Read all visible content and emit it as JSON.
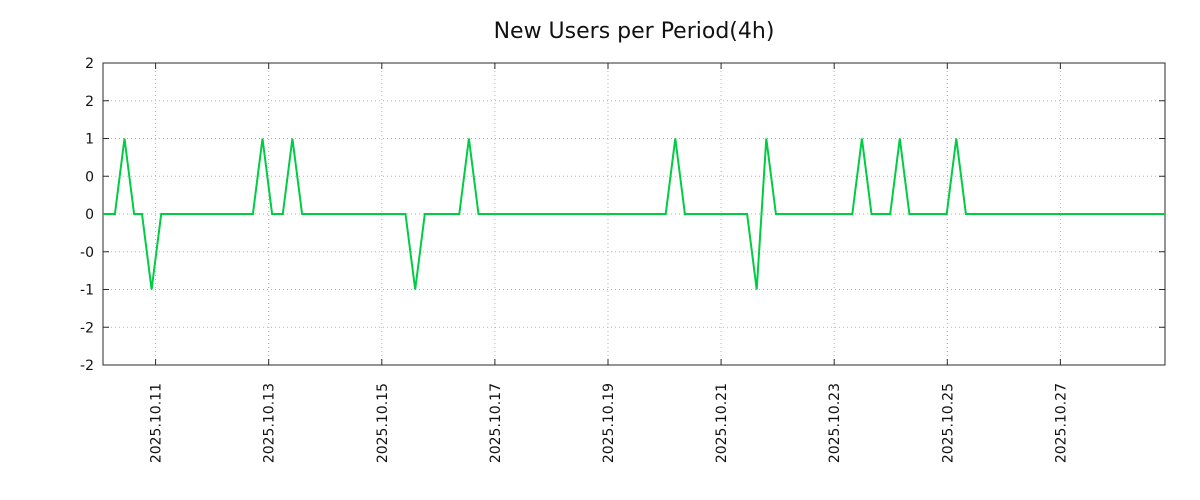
{
  "chart_data": {
    "type": "line",
    "title": "New Users per Period(4h)",
    "period_hours": 4,
    "line_color": "#00cc44",
    "grid_color": "#b3b3b3",
    "axis_color": "#2a2a2a",
    "text_color": "#111111",
    "background": "#ffffff",
    "grid": true,
    "legend": "none",
    "ylim": [
      -2,
      2
    ],
    "xlim_days": [
      -0.93,
      17.85
    ],
    "x_unit": "days_since_2025.10.11",
    "y_ticks": [
      {
        "value": 2.0,
        "label": "2"
      },
      {
        "value": 1.5,
        "label": "2"
      },
      {
        "value": 1.0,
        "label": "1"
      },
      {
        "value": 0.5,
        "label": "0"
      },
      {
        "value": 0.0,
        "label": "0"
      },
      {
        "value": -0.5,
        "label": "-0"
      },
      {
        "value": -1.0,
        "label": "-1"
      },
      {
        "value": -1.5,
        "label": "-2"
      },
      {
        "value": -2.0,
        "label": "-2"
      }
    ],
    "x_ticks": [
      {
        "day": 0,
        "label": "2025.10.11"
      },
      {
        "day": 2,
        "label": "2025.10.13"
      },
      {
        "day": 4,
        "label": "2025.10.15"
      },
      {
        "day": 6,
        "label": "2025.10.17"
      },
      {
        "day": 8,
        "label": "2025.10.19"
      },
      {
        "day": 10,
        "label": "2025.10.21"
      },
      {
        "day": 12,
        "label": "2025.10.23"
      },
      {
        "day": 14,
        "label": "2025.10.25"
      },
      {
        "day": 16,
        "label": "2025.10.27"
      }
    ],
    "baseline_value": 0,
    "spike_events": [
      {
        "day": -0.55,
        "value": 1
      },
      {
        "day": -0.07,
        "value": -1
      },
      {
        "day": 1.89,
        "value": 1
      },
      {
        "day": 2.42,
        "value": 1
      },
      {
        "day": 4.59,
        "value": -1
      },
      {
        "day": 5.54,
        "value": 1
      },
      {
        "day": 9.19,
        "value": 1
      },
      {
        "day": 10.63,
        "value": -1
      },
      {
        "day": 10.8,
        "value": 1
      },
      {
        "day": 12.49,
        "value": 1
      },
      {
        "day": 13.16,
        "value": 1
      },
      {
        "day": 14.16,
        "value": 1
      }
    ],
    "points_day_value": [
      [
        -0.93,
        0
      ],
      [
        -0.72,
        0
      ],
      [
        -0.55,
        1
      ],
      [
        -0.38,
        0
      ],
      [
        -0.24,
        0
      ],
      [
        -0.07,
        -1
      ],
      [
        0.1,
        0
      ],
      [
        1.72,
        0
      ],
      [
        1.89,
        1
      ],
      [
        2.06,
        0
      ],
      [
        2.25,
        0
      ],
      [
        2.42,
        1
      ],
      [
        2.59,
        0
      ],
      [
        4.42,
        0
      ],
      [
        4.59,
        -1
      ],
      [
        4.76,
        0
      ],
      [
        5.37,
        0
      ],
      [
        5.54,
        1
      ],
      [
        5.71,
        0
      ],
      [
        9.02,
        0
      ],
      [
        9.19,
        1
      ],
      [
        9.36,
        0
      ],
      [
        10.46,
        0
      ],
      [
        10.63,
        -1
      ],
      [
        10.8,
        1
      ],
      [
        10.97,
        0
      ],
      [
        12.32,
        0
      ],
      [
        12.49,
        1
      ],
      [
        12.66,
        0
      ],
      [
        12.99,
        0
      ],
      [
        13.16,
        1
      ],
      [
        13.33,
        0
      ],
      [
        13.99,
        0
      ],
      [
        14.16,
        1
      ],
      [
        14.33,
        0
      ],
      [
        17.85,
        0
      ]
    ]
  }
}
